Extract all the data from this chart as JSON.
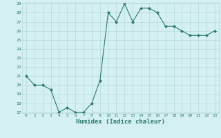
{
  "x": [
    0,
    1,
    2,
    3,
    4,
    5,
    6,
    7,
    8,
    9,
    10,
    11,
    12,
    13,
    14,
    15,
    16,
    17,
    18,
    19,
    20,
    21,
    22,
    23
  ],
  "y": [
    21,
    20,
    20,
    19.5,
    17,
    17.5,
    17,
    17,
    18,
    20.5,
    28,
    27,
    29,
    27,
    28.5,
    28.5,
    28,
    26.5,
    26.5,
    26,
    25.5,
    25.5,
    25.5,
    26
  ],
  "xlabel": "Humidex (Indice chaleur)",
  "ylim": [
    17,
    29
  ],
  "xlim": [
    -0.5,
    23.5
  ],
  "yticks": [
    17,
    18,
    19,
    20,
    21,
    22,
    23,
    24,
    25,
    26,
    27,
    28,
    29
  ],
  "xticks": [
    0,
    1,
    2,
    3,
    4,
    5,
    6,
    7,
    8,
    9,
    10,
    11,
    12,
    13,
    14,
    15,
    16,
    17,
    18,
    19,
    20,
    21,
    22,
    23
  ],
  "line_color": "#2d7a6a",
  "marker_color": "#2d7a6a",
  "bg_color": "#d4f0f0",
  "grid_color": "#b8d8d8",
  "label_color": "#2d7a6a",
  "tick_color": "#2d7a6a"
}
